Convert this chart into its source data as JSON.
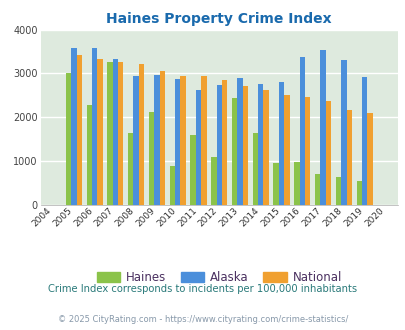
{
  "title": "Haines Property Crime Index",
  "years": [
    2004,
    2005,
    2006,
    2007,
    2008,
    2009,
    2010,
    2011,
    2012,
    2013,
    2014,
    2015,
    2016,
    2017,
    2018,
    2019,
    2020
  ],
  "haines": [
    0,
    3000,
    2270,
    3270,
    1640,
    2110,
    880,
    1590,
    1090,
    2430,
    1640,
    950,
    970,
    710,
    630,
    530,
    0
  ],
  "alaska": [
    0,
    3580,
    3580,
    3340,
    2950,
    2970,
    2870,
    2630,
    2730,
    2890,
    2760,
    2810,
    3370,
    3540,
    3300,
    2920,
    0
  ],
  "national": [
    0,
    3420,
    3340,
    3260,
    3220,
    3060,
    2940,
    2940,
    2860,
    2720,
    2620,
    2500,
    2460,
    2380,
    2170,
    2100,
    0
  ],
  "haines_color": "#8bc34a",
  "alaska_color": "#4b8fdb",
  "national_color": "#f0a030",
  "bg_color": "#deeade",
  "ylim": [
    0,
    4000
  ],
  "yticks": [
    0,
    1000,
    2000,
    3000,
    4000
  ],
  "subtitle": "Crime Index corresponds to incidents per 100,000 inhabitants",
  "footer": "© 2025 CityRating.com - https://www.cityrating.com/crime-statistics/",
  "title_color": "#1a6aad",
  "subtitle_color": "#2a7a7a",
  "footer_color": "#8899aa",
  "legend_labels": [
    "Haines",
    "Alaska",
    "National"
  ],
  "legend_text_color": "#4a3060"
}
